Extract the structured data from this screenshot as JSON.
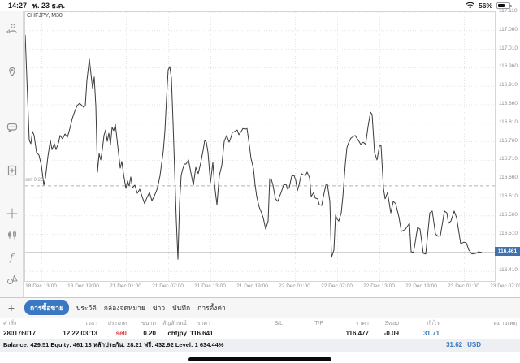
{
  "status_bar": {
    "time": "14:27",
    "date": "พ. 23 ธ.ค.",
    "battery_percent": "56%"
  },
  "sidebar": {
    "tools": [
      "account",
      "alerts",
      "chat",
      "new-order",
      "crosshair",
      "chart-type",
      "indicators",
      "objects"
    ],
    "timeframe_label": "M30"
  },
  "chart": {
    "symbol_label": "CHFJPY, M30",
    "sell_label": "sell 0.20",
    "current_price_label": "116.461"
  },
  "chart_data": {
    "type": "line",
    "title": "CHFJPY, M30",
    "y_axis": {
      "min": 116.41,
      "max": 117.11,
      "tick_step": 0.05,
      "hidden_tick": 116.46
    },
    "x_ticks": [
      "18 Dec 13:00",
      "18 Dec 19:00",
      "21 Dec 01:00",
      "21 Dec 07:00",
      "21 Dec 13:00",
      "21 Dec 19:00",
      "22 Dec 01:00",
      "22 Dec 07:00",
      "22 Dec 13:00",
      "22 Dec 19:00",
      "23 Dec 01:00",
      "23 Dec 07:00"
    ],
    "current_price": 116.461,
    "position_line": {
      "label": "sell 0.20",
      "price": 116.641
    },
    "points": [
      [
        30,
        117.049
      ],
      [
        33,
        116.878
      ],
      [
        35,
        116.764
      ],
      [
        37,
        116.755
      ],
      [
        39,
        116.788
      ],
      [
        41,
        116.777
      ],
      [
        44,
        116.731
      ],
      [
        47,
        116.724
      ],
      [
        50,
        116.696
      ],
      [
        53,
        116.643
      ],
      [
        55,
        116.663
      ],
      [
        58,
        116.72
      ],
      [
        61,
        116.764
      ],
      [
        63,
        116.739
      ],
      [
        66,
        116.755
      ],
      [
        68,
        116.739
      ],
      [
        71,
        116.757
      ],
      [
        73,
        116.777
      ],
      [
        76,
        116.768
      ],
      [
        79,
        116.781
      ],
      [
        82,
        116.772
      ],
      [
        85,
        116.796
      ],
      [
        88,
        116.823
      ],
      [
        91,
        116.842
      ],
      [
        94,
        116.858
      ],
      [
        97,
        116.864
      ],
      [
        100,
        116.858
      ],
      [
        102,
        116.853
      ],
      [
        104,
        116.858
      ],
      [
        106,
        116.926
      ],
      [
        109,
        116.983
      ],
      [
        111,
        116.943
      ],
      [
        113,
        116.904
      ],
      [
        115,
        116.935
      ],
      [
        117,
        116.856
      ],
      [
        119,
        116.678
      ],
      [
        121,
        116.728
      ],
      [
        123,
        116.711
      ],
      [
        125,
        116.739
      ],
      [
        127,
        116.777
      ],
      [
        129,
        116.792
      ],
      [
        131,
        116.761
      ],
      [
        133,
        116.783
      ],
      [
        135,
        116.753
      ],
      [
        137,
        116.799
      ],
      [
        139,
        116.79
      ],
      [
        141,
        116.807
      ],
      [
        143,
        116.768
      ],
      [
        145,
        116.728
      ],
      [
        147,
        116.689
      ],
      [
        149,
        116.707
      ],
      [
        151,
        116.674
      ],
      [
        154,
        116.634
      ],
      [
        156,
        116.654
      ],
      [
        158,
        116.641
      ],
      [
        160,
        116.665
      ],
      [
        162,
        116.636
      ],
      [
        165,
        116.643
      ],
      [
        168,
        116.621
      ],
      [
        171,
        116.632
      ],
      [
        174,
        116.612
      ],
      [
        177,
        116.593
      ],
      [
        180,
        116.61
      ],
      [
        183,
        116.623
      ],
      [
        186,
        116.601
      ],
      [
        189,
        116.614
      ],
      [
        192,
        116.63
      ],
      [
        194,
        116.647
      ],
      [
        196,
        116.669
      ],
      [
        198,
        116.702
      ],
      [
        200,
        116.735
      ],
      [
        202,
        116.79
      ],
      [
        204,
        116.878
      ],
      [
        206,
        116.954
      ],
      [
        208,
        116.963
      ],
      [
        210,
        116.932
      ],
      [
        212,
        116.812
      ],
      [
        214,
        116.68
      ],
      [
        216,
        116.549
      ],
      [
        218,
        116.443
      ],
      [
        220,
        116.593
      ],
      [
        222,
        116.669
      ],
      [
        224,
        116.687
      ],
      [
        226,
        116.7
      ],
      [
        228,
        116.7
      ],
      [
        231,
        116.711
      ],
      [
        234,
        116.676
      ],
      [
        237,
        116.643
      ],
      [
        240,
        116.691
      ],
      [
        243,
        116.674
      ],
      [
        246,
        116.702
      ],
      [
        249,
        116.737
      ],
      [
        251,
        116.764
      ],
      [
        253,
        116.759
      ],
      [
        255,
        116.731
      ],
      [
        258,
        116.65
      ],
      [
        261,
        116.704
      ],
      [
        263,
        116.645
      ],
      [
        266,
        116.59
      ],
      [
        269,
        116.669
      ],
      [
        272,
        116.696
      ],
      [
        275,
        116.761
      ],
      [
        278,
        116.777
      ],
      [
        281,
        116.759
      ],
      [
        283,
        116.77
      ],
      [
        285,
        116.785
      ],
      [
        288,
        116.788
      ],
      [
        291,
        116.792
      ],
      [
        293,
        116.779
      ],
      [
        296,
        116.788
      ],
      [
        298,
        116.796
      ],
      [
        301,
        116.794
      ],
      [
        303,
        116.796
      ],
      [
        305,
        116.766
      ],
      [
        308,
        116.715
      ],
      [
        311,
        116.687
      ],
      [
        313,
        116.643
      ],
      [
        315,
        116.612
      ],
      [
        318,
        116.584
      ],
      [
        321,
        116.568
      ],
      [
        323,
        116.555
      ],
      [
        326,
        116.524
      ],
      [
        329,
        116.546
      ],
      [
        331,
        116.66
      ],
      [
        333,
        116.658
      ],
      [
        335,
        116.643
      ],
      [
        338,
        116.606
      ],
      [
        341,
        116.599
      ],
      [
        343,
        116.612
      ],
      [
        345,
        116.623
      ],
      [
        348,
        116.643
      ],
      [
        351,
        116.645
      ],
      [
        353,
        116.632
      ],
      [
        355,
        116.636
      ],
      [
        358,
        116.667
      ],
      [
        361,
        116.669
      ],
      [
        363,
        116.656
      ],
      [
        365,
        116.628
      ],
      [
        367,
        116.643
      ],
      [
        370,
        116.674
      ],
      [
        372,
        116.671
      ],
      [
        375,
        116.669
      ],
      [
        377,
        116.678
      ],
      [
        380,
        116.663
      ],
      [
        382,
        116.612
      ],
      [
        385,
        116.623
      ],
      [
        387,
        116.608
      ],
      [
        390,
        116.606
      ],
      [
        392,
        116.59
      ],
      [
        395,
        116.588
      ],
      [
        397,
        116.612
      ],
      [
        400,
        116.643
      ],
      [
        402,
        116.645
      ],
      [
        405,
        116.599
      ],
      [
        407,
        116.448
      ],
      [
        410,
        116.468
      ],
      [
        412,
        116.562
      ],
      [
        414,
        116.551
      ],
      [
        416,
        116.546
      ],
      [
        419,
        116.568
      ],
      [
        421,
        116.612
      ],
      [
        424,
        116.7
      ],
      [
        426,
        116.744
      ],
      [
        428,
        116.757
      ],
      [
        431,
        116.77
      ],
      [
        436,
        116.777
      ],
      [
        440,
        116.764
      ],
      [
        443,
        116.753
      ],
      [
        446,
        116.759
      ],
      [
        449,
        116.753
      ],
      [
        452,
        116.801
      ],
      [
        455,
        116.84
      ],
      [
        457,
        116.834
      ],
      [
        460,
        116.731
      ],
      [
        463,
        116.711
      ],
      [
        466,
        116.748
      ],
      [
        468,
        116.75
      ],
      [
        471,
        116.634
      ],
      [
        473,
        116.606
      ],
      [
        476,
        116.623
      ],
      [
        480,
        116.568
      ],
      [
        483,
        116.599
      ],
      [
        486,
        116.593
      ],
      [
        490,
        116.557
      ],
      [
        493,
        116.518
      ],
      [
        498,
        116.524
      ],
      [
        503,
        116.54
      ],
      [
        505,
        116.463
      ],
      [
        508,
        116.461
      ],
      [
        513,
        116.529
      ],
      [
        516,
        116.524
      ],
      [
        520,
        116.459
      ],
      [
        523,
        116.457
      ],
      [
        528,
        116.568
      ],
      [
        531,
        116.573
      ],
      [
        535,
        116.511
      ],
      [
        538,
        116.505
      ],
      [
        541,
        116.507
      ],
      [
        546,
        116.573
      ],
      [
        549,
        116.568
      ],
      [
        551,
        116.54
      ],
      [
        554,
        116.546
      ],
      [
        558,
        116.573
      ],
      [
        561,
        116.555
      ],
      [
        566,
        116.485
      ],
      [
        570,
        116.489
      ],
      [
        573,
        116.487
      ],
      [
        576,
        116.468
      ],
      [
        580,
        116.457
      ],
      [
        585,
        116.459
      ],
      [
        588,
        116.463
      ],
      [
        592,
        116.461
      ]
    ]
  },
  "tabs": {
    "add_label": "+",
    "items": [
      {
        "label": "การซื้อขาย",
        "selected": true
      },
      {
        "label": "ประวัติ",
        "selected": false
      },
      {
        "label": "กล่องจดหมาย",
        "selected": false
      },
      {
        "label": "ข่าว",
        "selected": false
      },
      {
        "label": "บันทึก",
        "selected": false
      },
      {
        "label": "การตั้งค่า",
        "selected": false
      }
    ]
  },
  "trade_table": {
    "headers": [
      "คำสั่ง",
      "เวลา",
      "ประเภท",
      "ขนาด",
      "สัญลักษณ์",
      "ราคา",
      "S/L",
      "T/P",
      "ราคา",
      "Swap",
      "กำไร",
      "หมายเหตุ"
    ],
    "row": {
      "order": "280176017",
      "time": "12.22 03:13",
      "type": "sell",
      "volume": "0.20",
      "symbol": "chfjpy",
      "open_price": "116.641",
      "sl": "",
      "tp": "",
      "price": "116.477",
      "swap": "-0.09",
      "profit": "31.71",
      "comment": ""
    },
    "summary": {
      "profit": "31.62",
      "currency": "USD"
    }
  },
  "account_summary": {
    "text": "Balance: 429.51 Equity: 461.13 หลักประกัน: 28.21 ฟรี: 432.92 Level: 1 634.44%"
  },
  "colors": {
    "accent_blue": "#3a78c2",
    "sell_red": "#e03e3e",
    "price_box_blue": "#4272ad"
  }
}
